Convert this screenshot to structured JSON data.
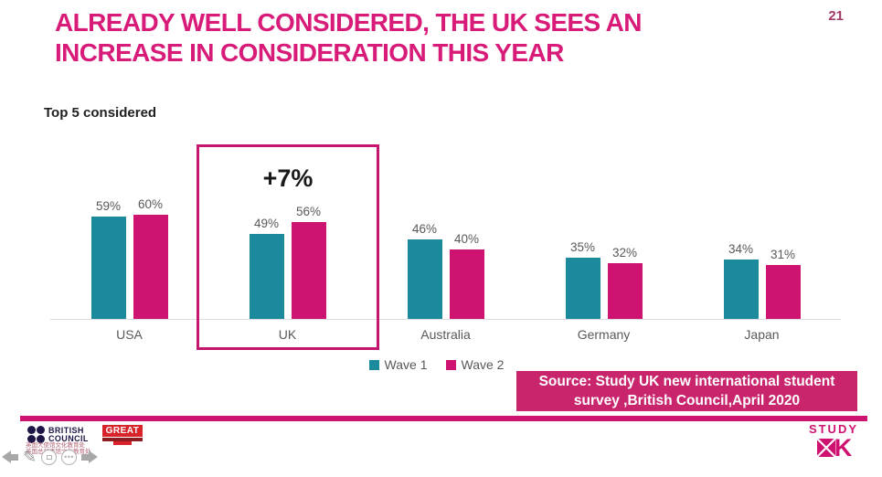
{
  "page": {
    "number": "21"
  },
  "title": {
    "line1": "ALREADY WELL CONSIDERED, THE UK SEES AN",
    "line2": "INCREASE IN CONSIDERATION THIS YEAR",
    "color": "#d81b78"
  },
  "chart_data": {
    "type": "bar",
    "title": "Top 5 considered",
    "categories": [
      "USA",
      "UK",
      "Australia",
      "Germany",
      "Japan"
    ],
    "series": [
      {
        "name": "Wave 1",
        "color": "#1b8a9c",
        "values": [
          59,
          49,
          46,
          35,
          34
        ]
      },
      {
        "name": "Wave 2",
        "color": "#ce1370",
        "values": [
          60,
          56,
          40,
          32,
          31
        ]
      }
    ],
    "value_suffix": "%",
    "ylim": [
      0,
      100
    ],
    "grid": false,
    "legend_position": "bottom",
    "annotation": {
      "category": "UK",
      "label": "+7%",
      "highlight_color": "#c5156f"
    }
  },
  "source": {
    "line1": "Source: Study UK new international student",
    "line2": "survey ,British Council,April 2020",
    "bg_color": "#c9256d",
    "text_color": "#ffffff"
  },
  "footer": {
    "british_council": {
      "line1": "BRITISH",
      "line2": "COUNCIL"
    },
    "great": {
      "label": "GREAT"
    },
    "chinese": {
      "line1": "英国大使馆文化教育处",
      "line2": "英国总领事馆文化教育处"
    },
    "study_uk": {
      "word": "STUDY",
      "letter": "K"
    }
  },
  "icons": {
    "nav": [
      "prev-arrow-icon",
      "pen-icon",
      "slides-overview-icon",
      "more-options-icon",
      "next-arrow-icon"
    ],
    "legend": [
      "wave1-swatch",
      "wave2-swatch"
    ]
  },
  "colors": {
    "title": "#d81b78",
    "wave1": "#1b8a9c",
    "wave2": "#ce1370",
    "label_gray": "#595959",
    "axis_line": "#dcdcdc",
    "bottom_bar": "#ce1370"
  }
}
